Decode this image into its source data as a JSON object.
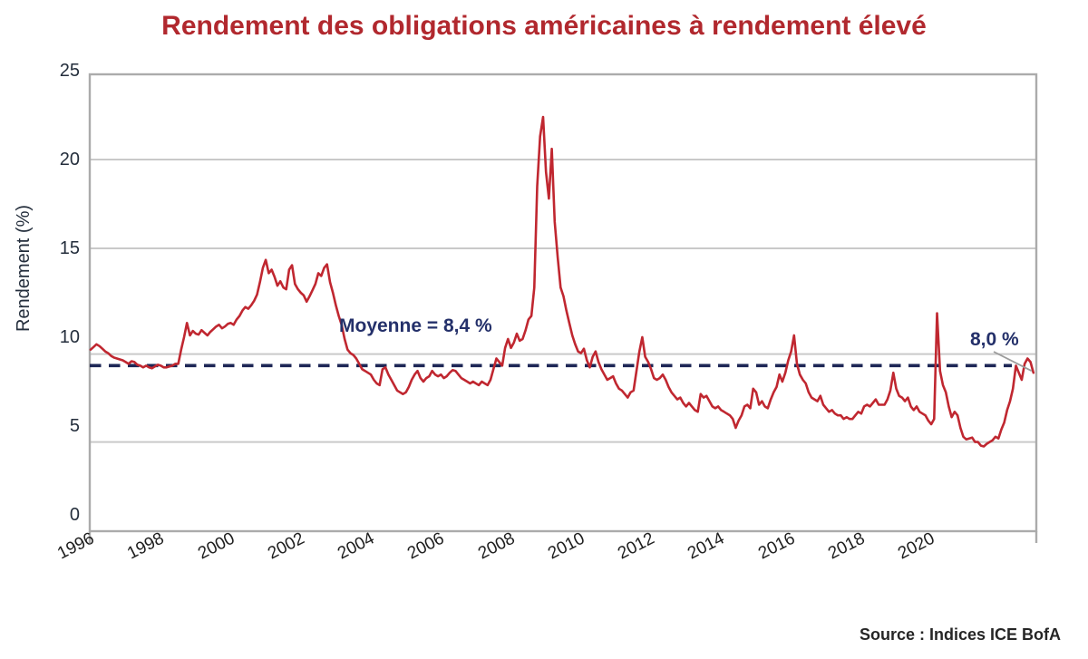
{
  "page": {
    "source": "Source : Indices ICE BofA"
  },
  "colors": {
    "title": "#B1282E",
    "series_line": "#C02730",
    "mean_dash": "#1E2756",
    "annotation_navy": "#24306A",
    "gridline": "#C9C9C9",
    "plot_border": "#ABABAB",
    "leader_line": "#9B9B9B",
    "background": "#FFFFFF"
  },
  "chart_data": {
    "type": "line",
    "title": "Rendement des obligations américaines à rendement élevé",
    "xlabel": "",
    "ylabel": "Rendement (%)",
    "y_ticks": [
      0,
      5,
      10,
      15,
      20,
      25
    ],
    "x_ticks": [
      1996,
      1998,
      2000,
      2002,
      2004,
      2006,
      2008,
      2010,
      2012,
      2014,
      2016,
      2018,
      2020
    ],
    "x_range": [
      1996.0,
      2023.0
    ],
    "ylim": [
      0,
      25
    ],
    "grid": "horizontal-only",
    "gridline_values": [
      20,
      15,
      9.05,
      4.1
    ],
    "legend": "none",
    "mean_line": {
      "value": 8.4,
      "label": "Moyenne = 8,4 %",
      "style": "dashed"
    },
    "end_annotation": {
      "value": 8.0,
      "label": "8,0 %"
    },
    "series": [
      {
        "name": "Rendement des obligations américaines à rendement élevé",
        "unit": "%",
        "frequency": "monthly",
        "x_start": 1996.0,
        "x_step": 0.0833333,
        "values": [
          9.3,
          9.45,
          9.6,
          9.5,
          9.35,
          9.2,
          9.1,
          8.95,
          8.85,
          8.8,
          8.75,
          8.7,
          8.6,
          8.5,
          8.65,
          8.6,
          8.45,
          8.4,
          8.3,
          8.4,
          8.3,
          8.25,
          8.35,
          8.45,
          8.4,
          8.3,
          8.3,
          8.35,
          8.4,
          8.5,
          8.5,
          9.3,
          10.0,
          10.8,
          10.1,
          10.35,
          10.2,
          10.15,
          10.4,
          10.25,
          10.1,
          10.3,
          10.45,
          10.6,
          10.7,
          10.5,
          10.6,
          10.75,
          10.8,
          10.7,
          11.0,
          11.2,
          11.5,
          11.7,
          11.6,
          11.8,
          12.05,
          12.4,
          13.1,
          13.9,
          14.35,
          13.6,
          13.8,
          13.4,
          12.9,
          13.15,
          12.8,
          12.7,
          13.8,
          14.05,
          13.0,
          12.7,
          12.5,
          12.35,
          12.0,
          12.3,
          12.65,
          13.0,
          13.6,
          13.45,
          13.9,
          14.1,
          13.1,
          12.5,
          11.8,
          11.2,
          10.7,
          9.9,
          9.3,
          9.1,
          9.0,
          8.8,
          8.5,
          8.2,
          8.1,
          8.0,
          7.9,
          7.6,
          7.4,
          7.3,
          8.2,
          8.3,
          7.9,
          7.6,
          7.3,
          7.0,
          6.9,
          6.8,
          6.9,
          7.2,
          7.6,
          7.9,
          8.1,
          7.7,
          7.5,
          7.7,
          7.8,
          8.1,
          7.9,
          7.8,
          7.9,
          7.7,
          7.8,
          8.0,
          8.15,
          8.1,
          7.9,
          7.7,
          7.6,
          7.5,
          7.4,
          7.5,
          7.4,
          7.3,
          7.5,
          7.4,
          7.3,
          7.6,
          8.2,
          8.8,
          8.6,
          8.4,
          9.4,
          9.9,
          9.4,
          9.7,
          10.2,
          9.8,
          9.9,
          10.4,
          11.0,
          11.2,
          12.8,
          18.5,
          21.3,
          22.4,
          19.3,
          17.8,
          20.6,
          16.5,
          14.5,
          12.8,
          12.3,
          11.5,
          10.8,
          10.1,
          9.6,
          9.2,
          9.1,
          9.35,
          8.7,
          8.3,
          8.9,
          9.2,
          8.6,
          8.2,
          7.9,
          7.6,
          7.7,
          7.8,
          7.4,
          7.1,
          7.0,
          6.8,
          6.6,
          6.9,
          7.0,
          8.1,
          9.2,
          10.0,
          8.9,
          8.6,
          8.2,
          7.7,
          7.6,
          7.7,
          7.9,
          7.6,
          7.2,
          6.9,
          6.7,
          6.5,
          6.6,
          6.3,
          6.1,
          6.3,
          6.1,
          5.9,
          5.8,
          6.8,
          6.6,
          6.7,
          6.4,
          6.1,
          6.0,
          6.1,
          5.9,
          5.8,
          5.7,
          5.6,
          5.4,
          4.9,
          5.3,
          5.6,
          6.1,
          6.2,
          6.0,
          7.1,
          6.9,
          6.2,
          6.4,
          6.1,
          6.0,
          6.5,
          6.9,
          7.2,
          7.9,
          7.5,
          8.0,
          8.7,
          9.2,
          10.1,
          8.5,
          7.9,
          7.6,
          7.4,
          6.9,
          6.6,
          6.5,
          6.4,
          6.7,
          6.2,
          6.0,
          5.8,
          5.9,
          5.7,
          5.6,
          5.6,
          5.4,
          5.5,
          5.4,
          5.4,
          5.6,
          5.8,
          5.7,
          6.1,
          6.2,
          6.1,
          6.3,
          6.5,
          6.2,
          6.2,
          6.2,
          6.5,
          7.0,
          8.0,
          7.1,
          6.7,
          6.6,
          6.4,
          6.6,
          6.1,
          5.9,
          6.1,
          5.8,
          5.7,
          5.6,
          5.3,
          5.1,
          5.4,
          11.35,
          8.1,
          7.3,
          6.9,
          6.1,
          5.5,
          5.8,
          5.6,
          4.9,
          4.4,
          4.25,
          4.3,
          4.35,
          4.1,
          4.1,
          3.9,
          3.85,
          4.0,
          4.1,
          4.2,
          4.4,
          4.3,
          4.8,
          5.2,
          5.9,
          6.4,
          7.1,
          8.4,
          8.0,
          7.6,
          8.5,
          8.8,
          8.6,
          8.0
        ]
      }
    ]
  }
}
